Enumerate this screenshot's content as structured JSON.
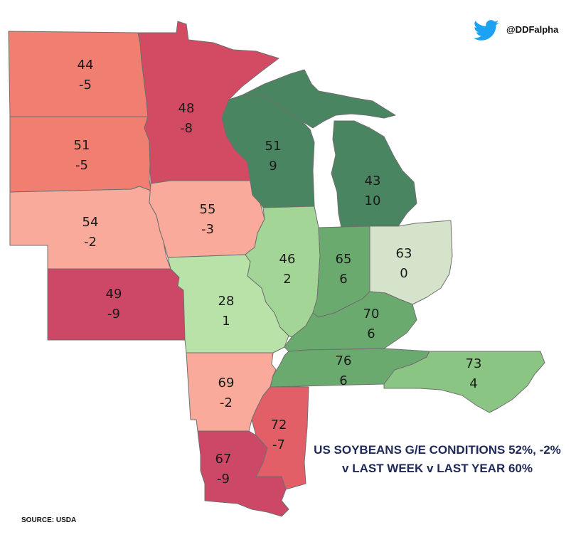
{
  "brand": {
    "handle": "@DDFalpha",
    "icon": "twitter-bird-icon",
    "icon_color": "#1da1f2"
  },
  "headline": {
    "line1": "US SOYBEANS G/E CONDITIONS 52%, -2%",
    "line2": "v LAST WEEK v LAST YEAR 60%"
  },
  "source": "SOURCE: USDA",
  "legend_colors": {
    "strong_negative": "#cd4766",
    "negative": "#f07f72",
    "mild_negative": "#f9aa9a",
    "neutral": "#d4e3c9",
    "mild_positive": "#a3d696",
    "positive": "#6aaa6e",
    "strong_positive": "#4a8562"
  },
  "states": {
    "ND": {
      "value": "44",
      "change": "-5",
      "color": "#f07f72"
    },
    "SD": {
      "value": "51",
      "change": "-5",
      "color": "#f07f72"
    },
    "NE": {
      "value": "54",
      "change": "-2",
      "color": "#f9aa9a"
    },
    "KS": {
      "value": "49",
      "change": "-9",
      "color": "#cd4766"
    },
    "MN": {
      "value": "48",
      "change": "-8",
      "color": "#d34b63"
    },
    "IA": {
      "value": "55",
      "change": "-3",
      "color": "#f9aa9a"
    },
    "MO": {
      "value": "28",
      "change": "1",
      "color": "#b9e2a8"
    },
    "WI": {
      "value": "51",
      "change": "9",
      "color": "#4a8562"
    },
    "IL": {
      "value": "46",
      "change": "2",
      "color": "#a3d696"
    },
    "MI": {
      "value": "43",
      "change": "10",
      "color": "#4a8562"
    },
    "IN": {
      "value": "65",
      "change": "6",
      "color": "#6aaa6e"
    },
    "OH": {
      "value": "63",
      "change": "0",
      "color": "#d4e3c9"
    },
    "KY": {
      "value": "70",
      "change": "6",
      "color": "#6aaa6e"
    },
    "TN": {
      "value": "76",
      "change": "6",
      "color": "#6aaa6e"
    },
    "NC": {
      "value": "73",
      "change": "4",
      "color": "#8bc584"
    },
    "AR": {
      "value": "69",
      "change": "-2",
      "color": "#f9aa9a"
    },
    "MS": {
      "value": "72",
      "change": "-7",
      "color": "#e25f68"
    },
    "LA": {
      "value": "67",
      "change": "-9",
      "color": "#cd4766"
    }
  }
}
